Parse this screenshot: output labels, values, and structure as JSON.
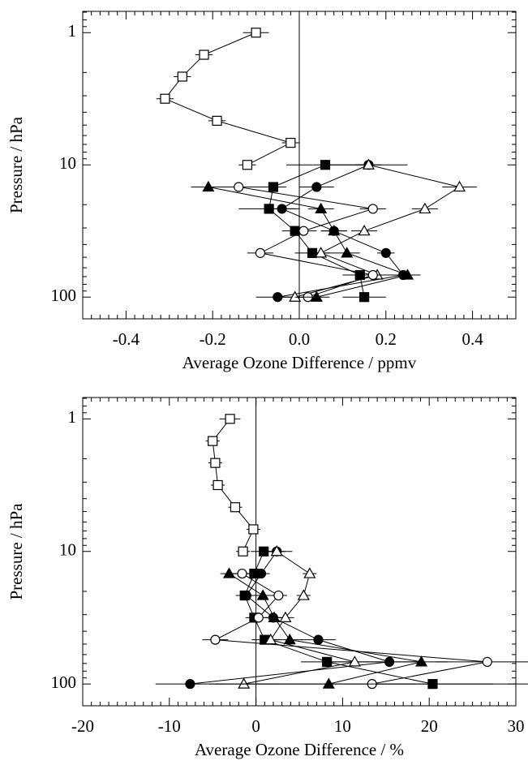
{
  "chart_data": [
    {
      "type": "line",
      "xlabel": "Average Ozone Difference / ppmv",
      "ylabel": "Pressure / hPa",
      "yscale": "log",
      "xlim": [
        -0.5,
        0.5
      ],
      "ylim": [
        146,
        0.69
      ],
      "xticks": [
        -0.4,
        -0.2,
        {
          "value": 0,
          "label": "0.0"
        },
        0.2,
        0.4
      ],
      "yticks": [
        1,
        10,
        100
      ],
      "levels": [
        1,
        1.47,
        2.15,
        3.16,
        4.64,
        6.81,
        10,
        14.7,
        21.5,
        31.6,
        46.4,
        68.1,
        100
      ],
      "series": [
        {
          "marker": "square",
          "filled": false,
          "color": "#000000",
          "values": [
            -0.1,
            -0.22,
            -0.27,
            -0.31,
            -0.19,
            -0.02,
            -0.12,
            null,
            null,
            null,
            null,
            null,
            null
          ],
          "errors": [
            0.03,
            0.02,
            0.02,
            0.02,
            0.02,
            0.02,
            0.02,
            null,
            null,
            null,
            null,
            null,
            null
          ]
        },
        {
          "marker": "square",
          "filled": true,
          "color": "#000000",
          "values": [
            null,
            null,
            null,
            null,
            null,
            null,
            0.06,
            -0.06,
            -0.07,
            -0.01,
            0.03,
            0.14,
            0.15
          ],
          "errors": [
            null,
            null,
            null,
            null,
            null,
            null,
            0.09,
            0.03,
            0.07,
            0.03,
            0.04,
            0.04,
            0.05
          ]
        },
        {
          "marker": "circle",
          "filled": true,
          "color": "#000000",
          "values": [
            null,
            null,
            null,
            null,
            null,
            null,
            0.16,
            0.04,
            -0.04,
            0.08,
            0.2,
            0.24,
            -0.05
          ],
          "errors": [
            null,
            null,
            null,
            null,
            null,
            null,
            0.09,
            0.04,
            0.03,
            0.03,
            0.02,
            0.03,
            0.05
          ]
        },
        {
          "marker": "triangle",
          "filled": false,
          "color": "#000000",
          "values": [
            null,
            null,
            null,
            null,
            null,
            null,
            0.16,
            0.37,
            0.29,
            0.15,
            0.05,
            0.18,
            -0.01
          ],
          "errors": [
            null,
            null,
            null,
            null,
            null,
            null,
            0.03,
            0.04,
            0.03,
            0.03,
            0.03,
            0.03,
            0.03
          ]
        },
        {
          "marker": "circle",
          "filled": false,
          "color": "#000000",
          "values": [
            null,
            null,
            null,
            null,
            null,
            null,
            null,
            -0.14,
            0.17,
            0.01,
            -0.09,
            0.17,
            0.02
          ],
          "errors": [
            null,
            null,
            null,
            null,
            null,
            null,
            null,
            0.06,
            0.03,
            0.03,
            0.03,
            0.03,
            0.03
          ]
        },
        {
          "marker": "triangle",
          "filled": true,
          "color": "#000000",
          "values": [
            null,
            null,
            null,
            null,
            null,
            null,
            null,
            -0.21,
            0.05,
            0.08,
            0.11,
            0.25,
            0.04
          ],
          "errors": [
            null,
            null,
            null,
            null,
            null,
            null,
            null,
            0.04,
            0.03,
            0.03,
            0.03,
            0.03,
            0.03
          ]
        }
      ]
    },
    {
      "type": "line",
      "xlabel": "Average Ozone Difference / %",
      "ylabel": "Pressure / hPa",
      "yscale": "log",
      "xlim": [
        -20,
        30
      ],
      "ylim": [
        146,
        0.69
      ],
      "xticks": [
        -20,
        -10,
        0,
        10,
        20,
        30
      ],
      "yticks": [
        1,
        10,
        100
      ],
      "levels": [
        1,
        1.47,
        2.15,
        3.16,
        4.64,
        6.81,
        10,
        14.7,
        21.5,
        31.6,
        46.4,
        68.1,
        100
      ],
      "series": [
        {
          "marker": "square",
          "filled": false,
          "color": "#000000",
          "values": [
            -3.0,
            -5.0,
            -4.7,
            -4.4,
            -2.4,
            -0.3,
            -1.5,
            null,
            null,
            null,
            null,
            null,
            null
          ],
          "errors": [
            1.2,
            0.8,
            0.8,
            0.8,
            0.8,
            0.8,
            0.8,
            null,
            null,
            null,
            null,
            null,
            null
          ]
        },
        {
          "marker": "square",
          "filled": true,
          "color": "#000000",
          "values": [
            null,
            null,
            null,
            null,
            null,
            null,
            0.9,
            -0.2,
            -1.3,
            -0.2,
            1.0,
            8.2,
            20.4
          ],
          "errors": [
            null,
            null,
            null,
            null,
            null,
            null,
            1.5,
            1.0,
            1.0,
            1.0,
            1.5,
            3.0,
            7.0
          ]
        },
        {
          "marker": "circle",
          "filled": true,
          "color": "#000000",
          "values": [
            null,
            null,
            null,
            null,
            null,
            null,
            2.4,
            0.6,
            -1.1,
            2.0,
            7.2,
            15.4,
            -7.6
          ],
          "errors": [
            null,
            null,
            null,
            null,
            null,
            null,
            1.8,
            1.0,
            1.0,
            1.0,
            2.0,
            4.0,
            4.0
          ]
        },
        {
          "marker": "triangle",
          "filled": false,
          "color": "#000000",
          "values": [
            null,
            null,
            null,
            null,
            null,
            null,
            2.4,
            6.2,
            5.5,
            3.4,
            1.7,
            11.4,
            -1.4
          ],
          "errors": [
            null,
            null,
            null,
            null,
            null,
            null,
            1.0,
            0.8,
            0.8,
            1.0,
            1.0,
            3.0,
            4.0
          ]
        },
        {
          "marker": "circle",
          "filled": false,
          "color": "#000000",
          "values": [
            null,
            null,
            null,
            null,
            null,
            null,
            null,
            -1.6,
            2.6,
            0.3,
            -4.7,
            26.7,
            13.4
          ],
          "errors": [
            null,
            null,
            null,
            null,
            null,
            null,
            null,
            1.5,
            1.0,
            1.0,
            1.5,
            6.0,
            18.0
          ]
        },
        {
          "marker": "triangle",
          "filled": true,
          "color": "#000000",
          "values": [
            null,
            null,
            null,
            null,
            null,
            null,
            null,
            -3.1,
            0.8,
            2.1,
            3.9,
            19.1,
            8.4
          ],
          "errors": [
            null,
            null,
            null,
            null,
            null,
            null,
            null,
            1.0,
            1.0,
            1.0,
            1.5,
            3.0,
            10.0
          ]
        }
      ]
    }
  ]
}
